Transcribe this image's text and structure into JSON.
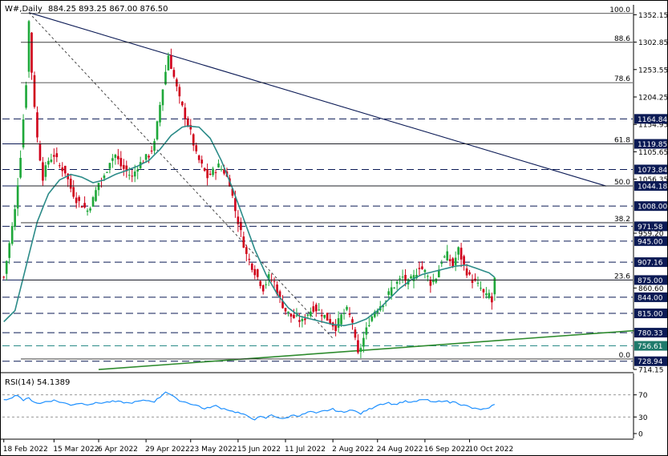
{
  "header": {
    "symbol": "W#,Daily",
    "ohlc": "884.25 893.25 867.00 876.50"
  },
  "rsi_label": "RSI(14) 54.1389",
  "chart_data": [
    {
      "type": "candlestick",
      "title": "W#,Daily",
      "ylim": [
        714.15,
        1370
      ],
      "price_ticks": [
        {
          "v": 1352.15,
          "t": "1352.15"
        },
        {
          "v": 1302.85,
          "t": "1302.85"
        },
        {
          "v": 1253.55,
          "t": "1253.55"
        },
        {
          "v": 1204.25,
          "t": "1204.25"
        },
        {
          "v": 1154.95,
          "t": "1154.95"
        },
        {
          "v": 1105.65,
          "t": "1105.65"
        },
        {
          "v": 1056.35,
          "t": "1056.35"
        },
        {
          "v": 959.2,
          "t": "959.20"
        },
        {
          "v": 860.6,
          "t": "860.60"
        },
        {
          "v": 714.15,
          "t": "714.15"
        }
      ],
      "horizontal_levels": [
        {
          "v": 1164.84,
          "t": "1164.84",
          "style": "dash",
          "label_fill": "#0b1a55"
        },
        {
          "v": 1119.85,
          "t": "1119.85",
          "style": "solid",
          "label_fill": "#0b1a55"
        },
        {
          "v": 1073.84,
          "t": "1073.84",
          "style": "dash",
          "label_fill": "#0b1a55"
        },
        {
          "v": 1044.18,
          "t": "1044.18",
          "style": "solid",
          "label_fill": "#0b1a55"
        },
        {
          "v": 1008.0,
          "t": "1008.00",
          "style": "dash",
          "label_fill": "#0b1a55"
        },
        {
          "v": 971.58,
          "t": "971.58",
          "style": "dash",
          "label_fill": "#0b1a55"
        },
        {
          "v": 945.0,
          "t": "945.00",
          "style": "dash",
          "label_fill": "#0b1a55"
        },
        {
          "v": 907.16,
          "t": "907.16",
          "style": "dash",
          "label_fill": "#0b1a55"
        },
        {
          "v": 875.0,
          "t": "875.00",
          "style": "solid",
          "label_fill": "#0b1a55"
        },
        {
          "v": 844.0,
          "t": "844.00",
          "style": "dash",
          "label_fill": "#0b1a55"
        },
        {
          "v": 815.0,
          "t": "815.00",
          "style": "dash",
          "label_fill": "#0b1a55"
        },
        {
          "v": 780.33,
          "t": "780.33",
          "style": "dash",
          "label_fill": "#0b1a55"
        },
        {
          "v": 756.61,
          "t": "756.61",
          "style": "dash-teal",
          "label_fill": "#1f7a6b"
        },
        {
          "v": 728.94,
          "t": "728.94",
          "style": "dash",
          "label_fill": "#0b1a55"
        }
      ],
      "fib_levels": [
        {
          "label": "100.0",
          "v": 1354.5
        },
        {
          "label": "88.6",
          "v": 1302.5
        },
        {
          "label": "78.6",
          "v": 1230.0
        },
        {
          "label": "61.8",
          "v": 1119.85
        },
        {
          "label": "50.0",
          "v": 1044.18
        },
        {
          "label": "38.2",
          "v": 978.0
        },
        {
          "label": "23.6",
          "v": 875.0
        },
        {
          "label": "0.0",
          "v": 733.0
        }
      ],
      "x_ticks": [
        {
          "d": "18 Feb 2022",
          "i": 0
        },
        {
          "d": "15 Mar 2022",
          "i": 18
        },
        {
          "d": "6 Apr 2022",
          "i": 34
        },
        {
          "d": "29 Apr 2022",
          "i": 51
        },
        {
          "d": "23 May 2022",
          "i": 67
        },
        {
          "d": "15 Jun 2022",
          "i": 84
        },
        {
          "d": "11 Jul 2022",
          "i": 101
        },
        {
          "d": "2 Aug 2022",
          "i": 118
        },
        {
          "d": "24 Aug 2022",
          "i": 134
        },
        {
          "d": "16 Sep 2022",
          "i": 151
        },
        {
          "d": "10 Oct 2022",
          "i": 167
        }
      ],
      "bar_count": 226,
      "colors": {
        "up": "#1fa83a",
        "down": "#d0021b",
        "ma": "#2b8b88",
        "trend": "#0b1a55",
        "support": "#2e8b2e",
        "grid": "#0b1a55"
      },
      "anchors": [
        [
          0,
          880
        ],
        [
          2,
          940
        ],
        [
          4,
          1000
        ],
        [
          6,
          1100
        ],
        [
          8,
          1230
        ],
        [
          9,
          1340
        ],
        [
          10,
          1250
        ],
        [
          12,
          1130
        ],
        [
          14,
          1060
        ],
        [
          16,
          1090
        ],
        [
          18,
          1100
        ],
        [
          20,
          1080
        ],
        [
          22,
          1070
        ],
        [
          24,
          1040
        ],
        [
          26,
          1020
        ],
        [
          28,
          1010
        ],
        [
          30,
          1000
        ],
        [
          32,
          1020
        ],
        [
          34,
          1050
        ],
        [
          36,
          1060
        ],
        [
          38,
          1090
        ],
        [
          40,
          1100
        ],
        [
          42,
          1080
        ],
        [
          44,
          1070
        ],
        [
          46,
          1060
        ],
        [
          48,
          1080
        ],
        [
          50,
          1090
        ],
        [
          52,
          1100
        ],
        [
          54,
          1120
        ],
        [
          56,
          1190
        ],
        [
          58,
          1250
        ],
        [
          59,
          1280
        ],
        [
          61,
          1240
        ],
        [
          63,
          1200
        ],
        [
          65,
          1170
        ],
        [
          67,
          1140
        ],
        [
          69,
          1100
        ],
        [
          71,
          1080
        ],
        [
          73,
          1060
        ],
        [
          75,
          1070
        ],
        [
          77,
          1080
        ],
        [
          79,
          1070
        ],
        [
          81,
          1050
        ],
        [
          83,
          1000
        ],
        [
          85,
          960
        ],
        [
          87,
          920
        ],
        [
          89,
          900
        ],
        [
          91,
          880
        ],
        [
          93,
          860
        ],
        [
          95,
          880
        ],
        [
          97,
          870
        ],
        [
          99,
          840
        ],
        [
          101,
          820
        ],
        [
          103,
          810
        ],
        [
          105,
          805
        ],
        [
          107,
          800
        ],
        [
          109,
          815
        ],
        [
          111,
          825
        ],
        [
          113,
          820
        ],
        [
          115,
          810
        ],
        [
          117,
          800
        ],
        [
          119,
          790
        ],
        [
          121,
          810
        ],
        [
          123,
          820
        ],
        [
          125,
          800
        ],
        [
          126,
          765
        ],
        [
          127,
          740
        ],
        [
          129,
          770
        ],
        [
          131,
          800
        ],
        [
          133,
          820
        ],
        [
          135,
          830
        ],
        [
          137,
          840
        ],
        [
          139,
          860
        ],
        [
          141,
          870
        ],
        [
          143,
          880
        ],
        [
          145,
          870
        ],
        [
          147,
          880
        ],
        [
          149,
          900
        ],
        [
          151,
          890
        ],
        [
          153,
          870
        ],
        [
          155,
          880
        ],
        [
          157,
          910
        ],
        [
          159,
          920
        ],
        [
          161,
          900
        ],
        [
          163,
          930
        ],
        [
          165,
          900
        ],
        [
          167,
          880
        ],
        [
          169,
          870
        ],
        [
          171,
          860
        ],
        [
          172,
          850
        ],
        [
          173,
          845
        ],
        [
          174,
          850
        ],
        [
          175,
          835
        ],
        [
          176,
          876
        ]
      ],
      "moving_average": [
        [
          0,
          800
        ],
        [
          4,
          820
        ],
        [
          8,
          900
        ],
        [
          12,
          980
        ],
        [
          16,
          1030
        ],
        [
          20,
          1055
        ],
        [
          24,
          1065
        ],
        [
          28,
          1060
        ],
        [
          32,
          1050
        ],
        [
          36,
          1055
        ],
        [
          40,
          1065
        ],
        [
          44,
          1072
        ],
        [
          48,
          1080
        ],
        [
          52,
          1090
        ],
        [
          56,
          1110
        ],
        [
          60,
          1135
        ],
        [
          64,
          1150
        ],
        [
          66,
          1152
        ],
        [
          70,
          1150
        ],
        [
          74,
          1130
        ],
        [
          78,
          1090
        ],
        [
          82,
          1040
        ],
        [
          86,
          985
        ],
        [
          90,
          930
        ],
        [
          94,
          885
        ],
        [
          98,
          850
        ],
        [
          102,
          825
        ],
        [
          106,
          810
        ],
        [
          110,
          805
        ],
        [
          114,
          800
        ],
        [
          118,
          795
        ],
        [
          122,
          793
        ],
        [
          126,
          797
        ],
        [
          130,
          805
        ],
        [
          134,
          820
        ],
        [
          138,
          840
        ],
        [
          142,
          860
        ],
        [
          146,
          875
        ],
        [
          150,
          885
        ],
        [
          154,
          890
        ],
        [
          158,
          895
        ],
        [
          162,
          900
        ],
        [
          166,
          902
        ],
        [
          170,
          895
        ],
        [
          174,
          888
        ],
        [
          176,
          880
        ]
      ],
      "trendlines": [
        {
          "name": "descending-resistance",
          "from": [
            9,
            1356
          ],
          "to": [
            216,
            1044
          ],
          "style": "solid"
        },
        {
          "name": "dashed-trend",
          "from": [
            9,
            1356
          ],
          "to": [
            118,
            770
          ],
          "style": "dash"
        },
        {
          "name": "ascending-support",
          "from": [
            34,
            714
          ],
          "to": [
            226,
            784
          ],
          "style": "solid-green"
        }
      ]
    },
    {
      "type": "line",
      "title": "RSI(14) 54.1389",
      "ylim": [
        0,
        100
      ],
      "ticks": [
        {
          "v": 70,
          "t": "70"
        },
        {
          "v": 30,
          "t": "30"
        },
        {
          "v": 0,
          "t": "0"
        }
      ],
      "levels": [
        70,
        30
      ],
      "current": 54.1389,
      "values": [
        [
          0,
          60
        ],
        [
          3,
          66
        ],
        [
          5,
          70
        ],
        [
          7,
          60
        ],
        [
          9,
          64
        ],
        [
          11,
          57
        ],
        [
          13,
          54
        ],
        [
          15,
          58
        ],
        [
          18,
          60
        ],
        [
          21,
          56
        ],
        [
          24,
          52
        ],
        [
          27,
          55
        ],
        [
          30,
          53
        ],
        [
          33,
          55
        ],
        [
          36,
          56
        ],
        [
          39,
          58
        ],
        [
          42,
          57
        ],
        [
          45,
          55
        ],
        [
          48,
          58
        ],
        [
          51,
          60
        ],
        [
          54,
          58
        ],
        [
          56,
          66
        ],
        [
          58,
          76
        ],
        [
          60,
          70
        ],
        [
          62,
          62
        ],
        [
          64,
          58
        ],
        [
          66,
          56
        ],
        [
          68,
          52
        ],
        [
          70,
          50
        ],
        [
          72,
          44
        ],
        [
          74,
          48
        ],
        [
          76,
          50
        ],
        [
          78,
          46
        ],
        [
          80,
          44
        ],
        [
          82,
          40
        ],
        [
          84,
          38
        ],
        [
          86,
          34
        ],
        [
          88,
          30
        ],
        [
          90,
          26
        ],
        [
          92,
          30
        ],
        [
          94,
          28
        ],
        [
          96,
          34
        ],
        [
          98,
          30
        ],
        [
          100,
          26
        ],
        [
          102,
          30
        ],
        [
          104,
          34
        ],
        [
          106,
          32
        ],
        [
          108,
          36
        ],
        [
          110,
          40
        ],
        [
          112,
          36
        ],
        [
          114,
          40
        ],
        [
          116,
          42
        ],
        [
          118,
          44
        ],
        [
          120,
          40
        ],
        [
          122,
          38
        ],
        [
          124,
          44
        ],
        [
          126,
          40
        ],
        [
          128,
          36
        ],
        [
          130,
          42
        ],
        [
          132,
          46
        ],
        [
          134,
          52
        ],
        [
          136,
          54
        ],
        [
          138,
          56
        ],
        [
          140,
          52
        ],
        [
          142,
          56
        ],
        [
          144,
          58
        ],
        [
          146,
          56
        ],
        [
          148,
          58
        ],
        [
          150,
          62
        ],
        [
          152,
          60
        ],
        [
          154,
          56
        ],
        [
          156,
          58
        ],
        [
          158,
          60
        ],
        [
          160,
          56
        ],
        [
          162,
          58
        ],
        [
          164,
          52
        ],
        [
          166,
          50
        ],
        [
          168,
          46
        ],
        [
          170,
          44
        ],
        [
          172,
          44
        ],
        [
          174,
          45
        ],
        [
          176,
          54
        ]
      ]
    }
  ]
}
